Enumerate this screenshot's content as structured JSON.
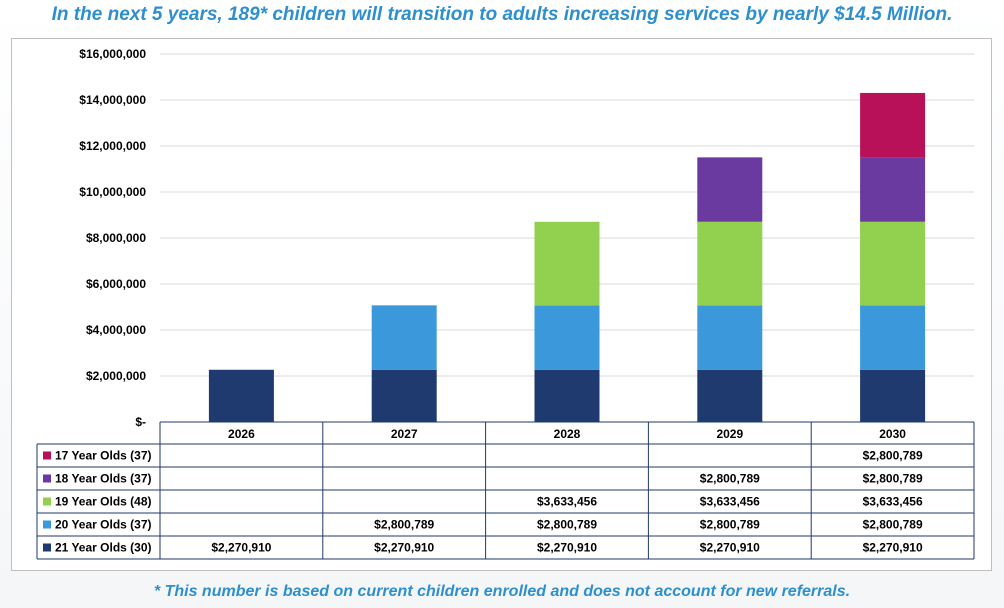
{
  "headline": "In the next 5 years, 189* children will transition to adults increasing services by nearly $14.5 Million.",
  "footnote": "* This number is based on current children enrolled and does not account for new referrals.",
  "chart_data": {
    "type": "bar",
    "stacked": true,
    "categories": [
      "2026",
      "2027",
      "2028",
      "2029",
      "2030"
    ],
    "ylim": [
      0,
      16000000
    ],
    "yticks": [
      {
        "value": 0,
        "label": "$-"
      },
      {
        "value": 2000000,
        "label": "$2,000,000"
      },
      {
        "value": 4000000,
        "label": "$4,000,000"
      },
      {
        "value": 6000000,
        "label": "$6,000,000"
      },
      {
        "value": 8000000,
        "label": "$8,000,000"
      },
      {
        "value": 10000000,
        "label": "$10,000,000"
      },
      {
        "value": 12000000,
        "label": "$12,000,000"
      },
      {
        "value": 14000000,
        "label": "$14,000,000"
      },
      {
        "value": 16000000,
        "label": "$16,000,000"
      }
    ],
    "grid": true,
    "legend": "data-table",
    "series": [
      {
        "name": "21 Year Olds (30)",
        "color": "#1f3a6e",
        "values": [
          2270910,
          2270910,
          2270910,
          2270910,
          2270910
        ],
        "labels": [
          "$2,270,910",
          "$2,270,910",
          "$2,270,910",
          "$2,270,910",
          "$2,270,910"
        ]
      },
      {
        "name": "20 Year Olds (37)",
        "color": "#3a98db",
        "values": [
          null,
          2800789,
          2800789,
          2800789,
          2800789
        ],
        "labels": [
          "",
          "$2,800,789",
          "$2,800,789",
          "$2,800,789",
          "$2,800,789"
        ]
      },
      {
        "name": "19 Year Olds (48)",
        "color": "#92d050",
        "values": [
          null,
          null,
          3633456,
          3633456,
          3633456
        ],
        "labels": [
          "",
          "",
          "$3,633,456",
          "$3,633,456",
          "$3,633,456"
        ]
      },
      {
        "name": "18 Year Olds (37)",
        "color": "#6a3aa0",
        "values": [
          null,
          null,
          null,
          2800789,
          2800789
        ],
        "labels": [
          "",
          "",
          "",
          "$2,800,789",
          "$2,800,789"
        ]
      },
      {
        "name": "17 Year Olds (37)",
        "color": "#b8115a",
        "values": [
          null,
          null,
          null,
          null,
          2800789
        ],
        "labels": [
          "",
          "",
          "",
          "",
          "$2,800,789"
        ]
      }
    ]
  }
}
